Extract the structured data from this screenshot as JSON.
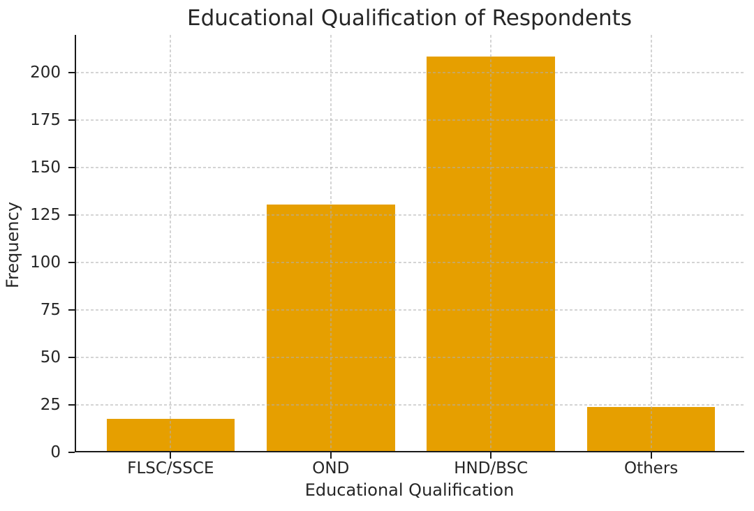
{
  "chart_data": {
    "type": "bar",
    "title": "Educational Qualification of Respondents",
    "xlabel": "Educational Qualification",
    "ylabel": "Frequency",
    "categories": [
      "FLSC/SSCE",
      "OND",
      "HND/BSC",
      "Others"
    ],
    "values": [
      17,
      130,
      208,
      23
    ],
    "yticks": [
      0,
      25,
      50,
      75,
      100,
      125,
      150,
      175,
      200
    ],
    "ylim": [
      0,
      220
    ],
    "bar_color": "#E69F00",
    "bar_width_fraction": 0.8,
    "grid": "dashed",
    "grid_color": "#b0b0b0",
    "axis_color": "#1a1a1a",
    "text_color": "#262626",
    "legend": "none"
  }
}
